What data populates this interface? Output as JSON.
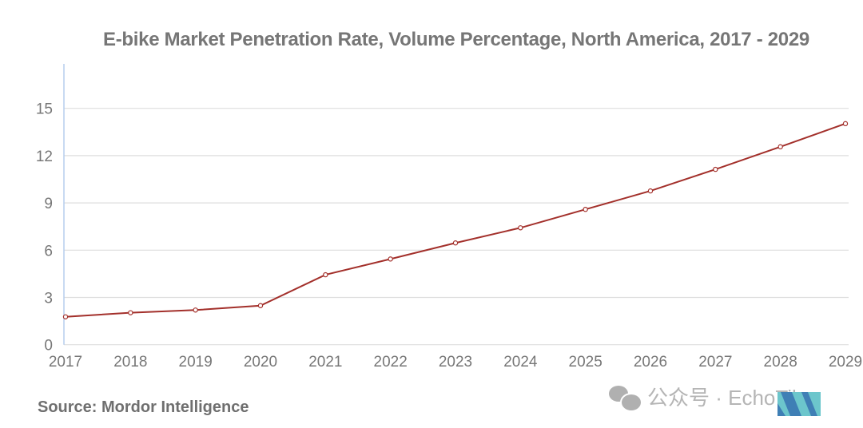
{
  "chart_data": {
    "type": "line",
    "title": "E-bike Market Penetration Rate, Volume Percentage, North America, 2017 - 2029",
    "xlabel": "",
    "ylabel": "",
    "categories": [
      "2017",
      "2018",
      "2019",
      "2020",
      "2021",
      "2022",
      "2023",
      "2024",
      "2025",
      "2026",
      "2027",
      "2028",
      "2029"
    ],
    "values": [
      1.77,
      2.03,
      2.2,
      2.48,
      4.44,
      5.44,
      6.46,
      7.42,
      8.59,
      9.76,
      11.13,
      12.56,
      14.03
    ],
    "yticks": [
      0,
      3,
      6,
      9,
      12,
      15
    ],
    "ylim": [
      0,
      17.5
    ],
    "grid": true,
    "line_color": "#a3302b",
    "legend": "none"
  },
  "source": "Source:  Mordor Intelligence",
  "watermark": {
    "text": "公众号 · EchoTik",
    "icon": "wechat-icon"
  }
}
